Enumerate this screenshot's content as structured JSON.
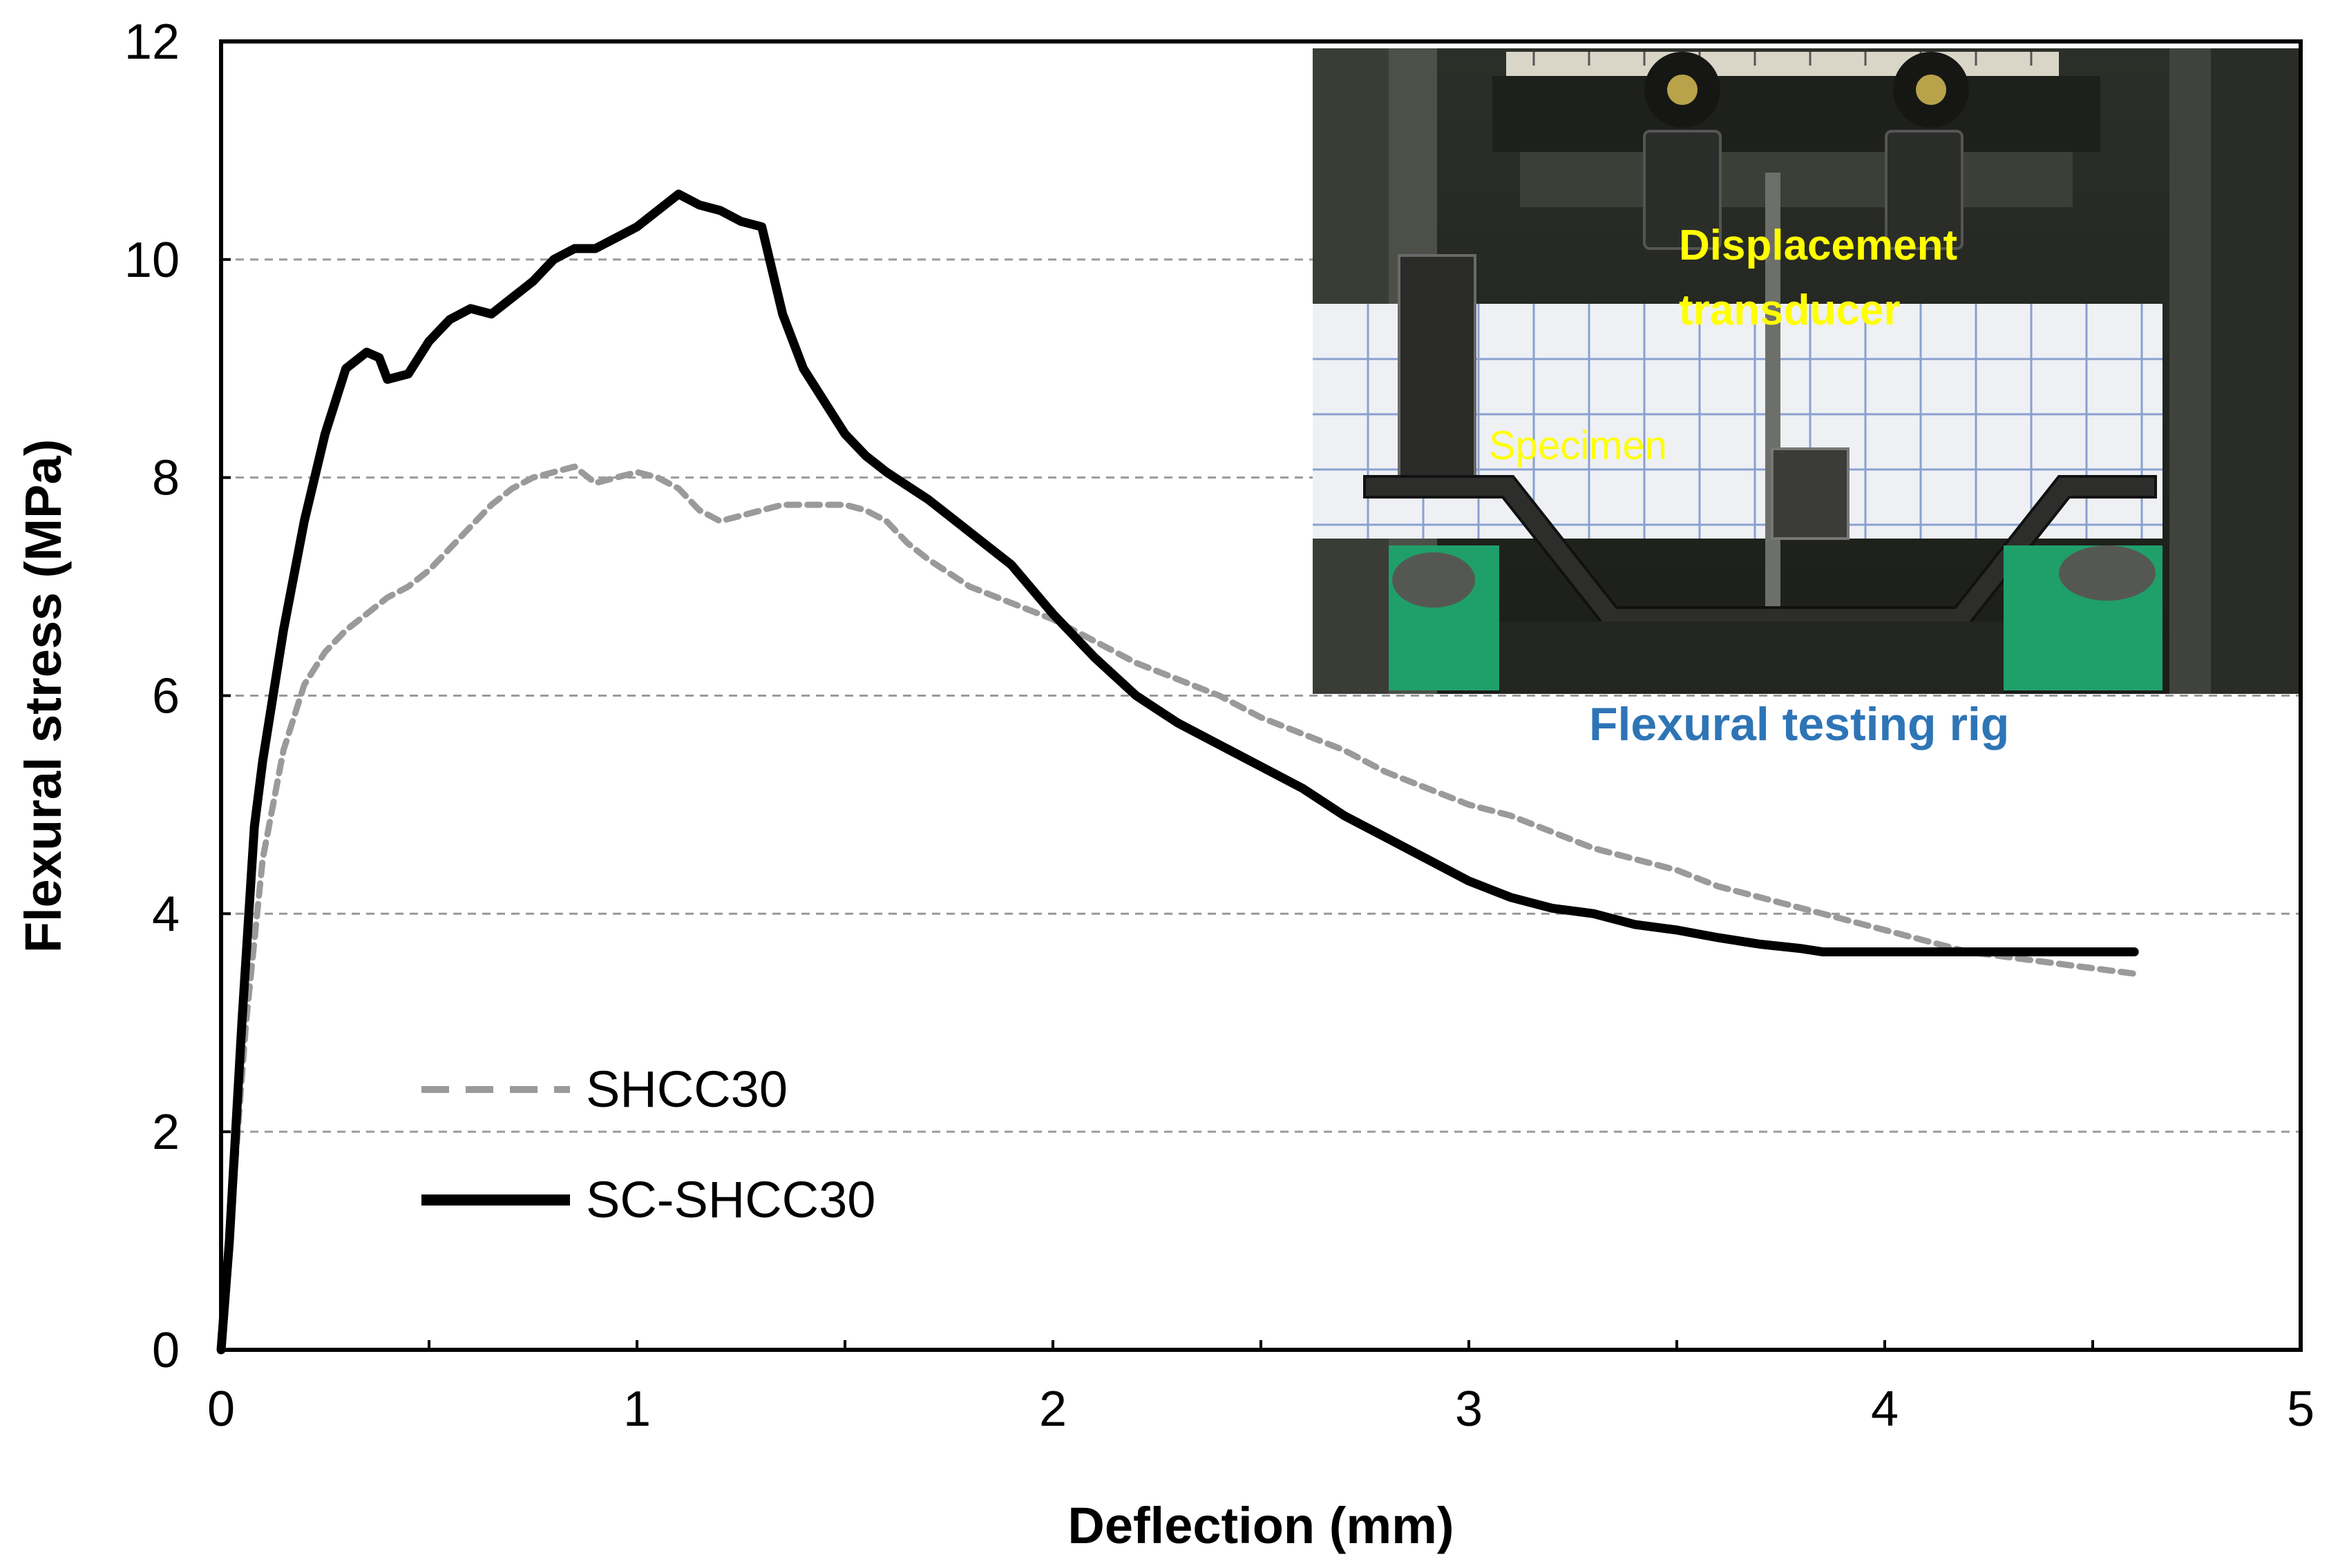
{
  "chart_data": {
    "type": "line",
    "title": "",
    "xlabel": "Deflection (mm)",
    "ylabel": "Flexural stress (MPa)",
    "xlim": [
      0,
      5
    ],
    "ylim": [
      0,
      12
    ],
    "x_ticks": [
      "0",
      "1",
      "2",
      "3",
      "4",
      "5"
    ],
    "y_ticks": [
      "0",
      "2",
      "4",
      "6",
      "8",
      "10",
      "12"
    ],
    "grid": "horizontal dashed",
    "legend_position": "bottom-left",
    "series": [
      {
        "name": "SHCC30",
        "style": "dashed",
        "color": "#9a9a9a",
        "x": [
          0,
          0.03,
          0.06,
          0.1,
          0.15,
          0.2,
          0.25,
          0.3,
          0.35,
          0.4,
          0.45,
          0.5,
          0.55,
          0.6,
          0.65,
          0.7,
          0.75,
          0.8,
          0.85,
          0.9,
          0.95,
          1.0,
          1.05,
          1.1,
          1.15,
          1.2,
          1.25,
          1.3,
          1.35,
          1.4,
          1.45,
          1.5,
          1.55,
          1.6,
          1.65,
          1.7,
          1.8,
          1.9,
          2.0,
          2.1,
          2.2,
          2.3,
          2.4,
          2.5,
          2.6,
          2.7,
          2.8,
          2.9,
          3.0,
          3.1,
          3.2,
          3.3,
          3.4,
          3.5,
          3.6,
          3.7,
          3.8,
          3.9,
          4.0,
          4.1,
          4.2,
          4.3,
          4.4,
          4.5,
          4.6
        ],
        "values": [
          0,
          1.5,
          3.0,
          4.5,
          5.5,
          6.1,
          6.4,
          6.6,
          6.75,
          6.9,
          7.0,
          7.15,
          7.35,
          7.55,
          7.75,
          7.9,
          8.0,
          8.05,
          8.1,
          7.95,
          8.0,
          8.05,
          8.0,
          7.9,
          7.7,
          7.6,
          7.65,
          7.7,
          7.75,
          7.75,
          7.75,
          7.75,
          7.7,
          7.6,
          7.4,
          7.25,
          7.0,
          6.85,
          6.7,
          6.5,
          6.3,
          6.15,
          6.0,
          5.8,
          5.65,
          5.5,
          5.3,
          5.15,
          5.0,
          4.9,
          4.75,
          4.6,
          4.5,
          4.4,
          4.25,
          4.15,
          4.05,
          3.95,
          3.85,
          3.75,
          3.65,
          3.6,
          3.55,
          3.5,
          3.45
        ]
      },
      {
        "name": "SC-SHCC30",
        "style": "solid",
        "color": "#000000",
        "x": [
          0,
          0.02,
          0.05,
          0.08,
          0.1,
          0.15,
          0.2,
          0.25,
          0.3,
          0.35,
          0.38,
          0.4,
          0.45,
          0.5,
          0.55,
          0.6,
          0.65,
          0.7,
          0.75,
          0.8,
          0.85,
          0.9,
          0.95,
          1.0,
          1.05,
          1.1,
          1.15,
          1.2,
          1.25,
          1.3,
          1.35,
          1.4,
          1.45,
          1.5,
          1.55,
          1.6,
          1.7,
          1.8,
          1.9,
          2.0,
          2.1,
          2.2,
          2.3,
          2.4,
          2.5,
          2.6,
          2.7,
          2.8,
          2.9,
          3.0,
          3.1,
          3.2,
          3.3,
          3.4,
          3.5,
          3.6,
          3.7,
          3.8,
          3.85,
          4.0,
          4.2,
          4.4,
          4.6
        ],
        "values": [
          0,
          1.0,
          3.0,
          4.8,
          5.4,
          6.6,
          7.6,
          8.4,
          9.0,
          9.15,
          9.1,
          8.9,
          8.95,
          9.25,
          9.45,
          9.55,
          9.5,
          9.65,
          9.8,
          10.0,
          10.1,
          10.1,
          10.2,
          10.3,
          10.45,
          10.6,
          10.5,
          10.45,
          10.35,
          10.3,
          9.5,
          9.0,
          8.7,
          8.4,
          8.2,
          8.05,
          7.8,
          7.5,
          7.2,
          6.75,
          6.35,
          6.0,
          5.75,
          5.55,
          5.35,
          5.15,
          4.9,
          4.7,
          4.5,
          4.3,
          4.15,
          4.05,
          4.0,
          3.9,
          3.85,
          3.78,
          3.72,
          3.68,
          3.65,
          3.65,
          3.65,
          3.65,
          3.65
        ]
      }
    ]
  },
  "legend": {
    "items": [
      {
        "label": "SHCC30",
        "color": "#9a9a9a",
        "style": "dashed"
      },
      {
        "label": "SC-SHCC30",
        "color": "#000000",
        "style": "solid"
      }
    ]
  },
  "inset": {
    "caption": "Flexural testing rig",
    "caption_color": "#2e75b6",
    "label_transducer_line1": "Displacement",
    "label_transducer_line2": "transducer",
    "label_specimen": "Specimen",
    "label_color": "#ffff00"
  }
}
